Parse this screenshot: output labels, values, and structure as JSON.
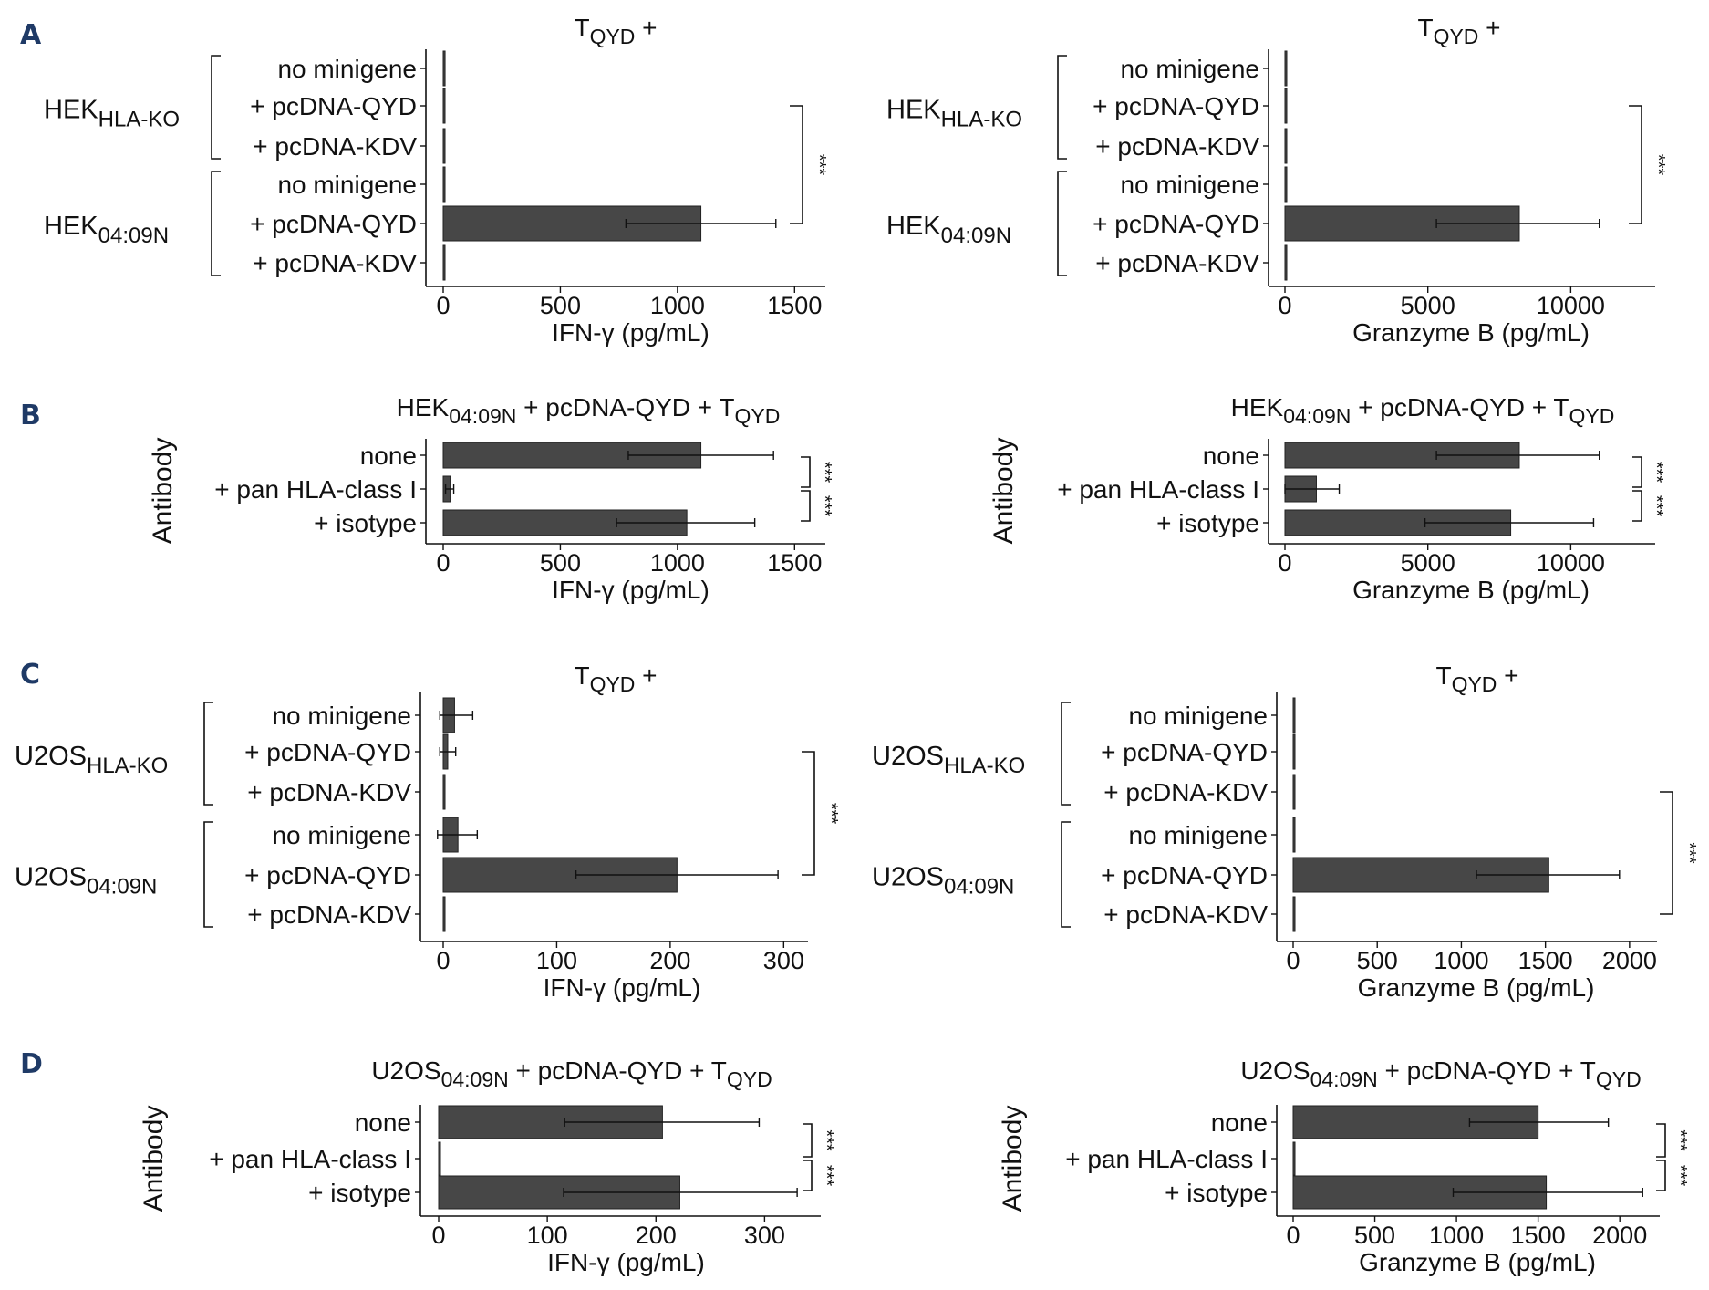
{
  "colors": {
    "bar": "#474747",
    "axis": "#111111",
    "panel_letter": "#1f3a66"
  },
  "panel_letters": [
    "A",
    "B",
    "C",
    "D"
  ],
  "chart_data": [
    {
      "id": "A-ifng",
      "panel": "A",
      "type": "bar",
      "orientation": "horizontal",
      "title": "T",
      "title_sub": "QYD",
      "title_post": " +",
      "categories": [
        "no minigene",
        "+ pcDNA-QYD",
        "+ pcDNA-KDV",
        "no minigene",
        "+ pcDNA-QYD",
        "+ pcDNA-KDV"
      ],
      "values": [
        8,
        0,
        0,
        0,
        1100,
        0
      ],
      "error": [
        null,
        null,
        null,
        null,
        [
          780,
          1420
        ],
        null
      ],
      "groups": [
        {
          "main": "HEK",
          "sub": "HLA-KO",
          "rows": [
            0,
            2
          ]
        },
        {
          "main": "HEK",
          "sub": "04:09N",
          "rows": [
            3,
            5
          ]
        }
      ],
      "xlabel": "IFN-γ (pg/mL)",
      "xticks": [
        0,
        500,
        1000,
        1500
      ],
      "xticklabels": [
        "0",
        "500",
        "1000",
        "1500"
      ],
      "xlim": [
        0,
        1600
      ],
      "significance": [
        {
          "rows": [
            1,
            4
          ],
          "label": "***"
        }
      ]
    },
    {
      "id": "A-gzmb",
      "panel": "A",
      "type": "bar",
      "orientation": "horizontal",
      "title": "T",
      "title_sub": "QYD",
      "title_post": " +",
      "categories": [
        "no minigene",
        "+ pcDNA-QYD",
        "+ pcDNA-KDV",
        "no minigene",
        "+ pcDNA-QYD",
        "+ pcDNA-KDV"
      ],
      "values": [
        0,
        0,
        0,
        0,
        8200,
        0
      ],
      "error": [
        null,
        null,
        null,
        null,
        [
          5300,
          11000
        ],
        null
      ],
      "groups": [
        {
          "main": "HEK",
          "sub": "HLA-KO",
          "rows": [
            0,
            2
          ]
        },
        {
          "main": "HEK",
          "sub": "04:09N",
          "rows": [
            3,
            5
          ]
        }
      ],
      "xlabel": "Granzyme B (pg/mL)",
      "xticks": [
        0,
        5000,
        10000
      ],
      "xticklabels": [
        "0",
        "5000",
        "10000"
      ],
      "xlim": [
        0,
        12700
      ],
      "significance": [
        {
          "rows": [
            1,
            4
          ],
          "label": "***"
        }
      ]
    },
    {
      "id": "B-ifng",
      "panel": "B",
      "type": "bar",
      "orientation": "horizontal",
      "title": "HEK",
      "title_sub": "04:09N",
      "title_post": " + pcDNA-QYD + T",
      "title_sub2": "QYD",
      "ylabel": "Antibody",
      "categories": [
        "none",
        "+ pan HLA-class I",
        "+ isotype"
      ],
      "values": [
        1100,
        30,
        1040
      ],
      "error": [
        [
          790,
          1410
        ],
        [
          10,
          45
        ],
        [
          740,
          1330
        ]
      ],
      "xlabel": "IFN-γ (pg/mL)",
      "xticks": [
        0,
        500,
        1000,
        1500
      ],
      "xticklabels": [
        "0",
        "500",
        "1000",
        "1500"
      ],
      "xlim": [
        0,
        1600
      ],
      "significance": [
        {
          "rows": [
            0,
            1
          ],
          "label": "***"
        },
        {
          "rows": [
            1,
            2
          ],
          "label": "***"
        }
      ]
    },
    {
      "id": "B-gzmb",
      "panel": "B",
      "type": "bar",
      "orientation": "horizontal",
      "title": "HEK",
      "title_sub": "04:09N",
      "title_post": " + pcDNA-QYD + T",
      "title_sub2": "QYD",
      "ylabel": "Antibody",
      "categories": [
        "none",
        "+ pan HLA-class I",
        "+ isotype"
      ],
      "values": [
        8200,
        1100,
        7900
      ],
      "error": [
        [
          5300,
          11000
        ],
        [
          0,
          1900
        ],
        [
          4900,
          10800
        ]
      ],
      "xlabel": "Granzyme B (pg/mL)",
      "xticks": [
        0,
        5000,
        10000
      ],
      "xticklabels": [
        "0",
        "5000",
        "10000"
      ],
      "xlim": [
        0,
        12700
      ],
      "significance": [
        {
          "rows": [
            0,
            1
          ],
          "label": "***"
        },
        {
          "rows": [
            1,
            2
          ],
          "label": "***"
        }
      ]
    },
    {
      "id": "C-ifng",
      "panel": "C",
      "type": "bar",
      "orientation": "horizontal",
      "title": "T",
      "title_sub": "QYD",
      "title_post": " +",
      "categories": [
        "no minigene",
        "+ pcDNA-QYD",
        "+ pcDNA-KDV",
        "no minigene",
        "+ pcDNA-QYD",
        "+ pcDNA-KDV"
      ],
      "values": [
        10,
        4,
        0,
        13,
        206,
        0
      ],
      "error": [
        [
          -3,
          26
        ],
        [
          -3,
          11
        ],
        null,
        [
          -5,
          30
        ],
        [
          117,
          295
        ],
        null
      ],
      "groups": [
        {
          "main": "U2OS",
          "sub": "HLA-KO",
          "rows": [
            0,
            2
          ]
        },
        {
          "main": "U2OS",
          "sub": "04:09N",
          "rows": [
            3,
            5
          ]
        }
      ],
      "xlabel": "IFN-γ (pg/mL)",
      "xticks": [
        0,
        100,
        200,
        300
      ],
      "xticklabels": [
        "0",
        "100",
        "200",
        "300"
      ],
      "xlim": [
        0,
        315
      ],
      "significance": [
        {
          "rows": [
            1,
            4
          ],
          "label": "***"
        }
      ]
    },
    {
      "id": "C-gzmb",
      "panel": "C",
      "type": "bar",
      "orientation": "horizontal",
      "title": "T",
      "title_sub": "QYD",
      "title_post": " +",
      "categories": [
        "no minigene",
        "+ pcDNA-QYD",
        "+ pcDNA-KDV",
        "no minigene",
        "+ pcDNA-QYD",
        "+ pcDNA-KDV"
      ],
      "values": [
        0,
        0,
        0,
        0,
        1520,
        0
      ],
      "error": [
        null,
        null,
        null,
        null,
        [
          1090,
          1940
        ],
        null
      ],
      "groups": [
        {
          "main": "U2OS",
          "sub": "HLA-KO",
          "rows": [
            0,
            2
          ]
        },
        {
          "main": "U2OS",
          "sub": "04:09N",
          "rows": [
            3,
            5
          ]
        }
      ],
      "xlabel": "Granzyme B (pg/mL)",
      "xticks": [
        0,
        500,
        1000,
        1500,
        2000
      ],
      "xticklabels": [
        "0",
        "500",
        "1000",
        "1500",
        "2000"
      ],
      "xlim": [
        0,
        2120
      ],
      "significance": [
        {
          "rows": [
            2,
            5
          ],
          "label": "***"
        }
      ]
    },
    {
      "id": "D-ifng",
      "panel": "D",
      "type": "bar",
      "orientation": "horizontal",
      "title": "U2OS",
      "title_sub": "04:09N",
      "title_post": " + pcDNA-QYD + T",
      "title_sub2": "QYD",
      "ylabel": "Antibody",
      "categories": [
        "none",
        "+ pan HLA-class I",
        "+ isotype"
      ],
      "values": [
        206,
        0,
        222
      ],
      "error": [
        [
          116,
          295
        ],
        null,
        [
          115,
          330
        ]
      ],
      "xlabel": "IFN-γ (pg/mL)",
      "xticks": [
        0,
        100,
        200,
        300
      ],
      "xticklabels": [
        "0",
        "100",
        "200",
        "300"
      ],
      "xlim": [
        0,
        345
      ],
      "significance": [
        {
          "rows": [
            0,
            1
          ],
          "label": "***"
        },
        {
          "rows": [
            1,
            2
          ],
          "label": "***"
        }
      ]
    },
    {
      "id": "D-gzmb",
      "panel": "D",
      "type": "bar",
      "orientation": "horizontal",
      "title": "U2OS",
      "title_sub": "04:09N",
      "title_post": " + pcDNA-QYD + T",
      "title_sub2": "QYD",
      "ylabel": "Antibody",
      "categories": [
        "none",
        "+ pan HLA-class I",
        "+ isotype"
      ],
      "values": [
        1500,
        0,
        1550
      ],
      "error": [
        [
          1080,
          1930
        ],
        null,
        [
          980,
          2140
        ]
      ],
      "xlabel": "Granzyme B (pg/mL)",
      "xticks": [
        0,
        500,
        1000,
        1500,
        2000
      ],
      "xticklabels": [
        "0",
        "500",
        "1000",
        "1500",
        "2000"
      ],
      "xlim": [
        0,
        2200
      ],
      "significance": [
        {
          "rows": [
            0,
            1
          ],
          "label": "***"
        },
        {
          "rows": [
            1,
            2
          ],
          "label": "***"
        }
      ]
    }
  ]
}
